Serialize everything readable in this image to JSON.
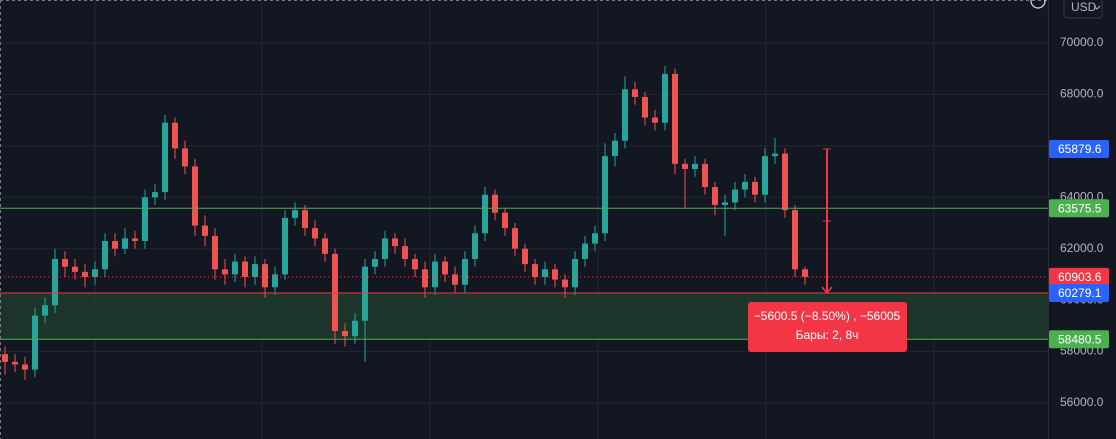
{
  "chart_data": {
    "type": "candlestick",
    "currency": "USD",
    "ylim": [
      54600,
      71672
    ],
    "yticks": [
      {
        "value": 56000,
        "label": "56000.0"
      },
      {
        "value": 58000,
        "label": "58000.0"
      },
      {
        "value": 60000,
        "label": "60000.0"
      },
      {
        "value": 62000,
        "label": "62000.0"
      },
      {
        "value": 64000,
        "label": "64000.0"
      },
      {
        "value": 66000,
        "label": "66000.0"
      },
      {
        "value": 68000,
        "label": "68000.0"
      },
      {
        "value": 70000,
        "label": "70000.0"
      }
    ],
    "grid": true,
    "up_color": "#26a69a",
    "down_color": "#ef5350",
    "open": [
      57900,
      57600,
      57500,
      57300,
      59400,
      59800,
      61600,
      61300,
      61100,
      60900,
      61200,
      62300,
      62000,
      62400,
      62300,
      64000,
      64200,
      66900,
      65900,
      65200,
      62900,
      62500,
      61200,
      61000,
      61500,
      60900,
      61400,
      60500,
      61000,
      63200,
      63500,
      62800,
      62400,
      61800,
      58800,
      58600,
      59200,
      61300,
      61600,
      62400,
      62100,
      61600,
      61200,
      60500,
      61500,
      61000,
      60600,
      61600,
      62600,
      64100,
      63400,
      62800,
      62000,
      61400,
      60900,
      61200,
      60800,
      60500,
      61600,
      62200,
      62600,
      65600,
      66200,
      68200,
      67900,
      67100,
      66900,
      68800,
      65300,
      65100,
      65300,
      64400,
      63700,
      63800,
      64300,
      64600,
      64100,
      65600,
      65700,
      63500,
      61200
    ],
    "high": [
      58200,
      57900,
      57800,
      59700,
      60100,
      62000,
      61900,
      61600,
      61400,
      61500,
      62600,
      62600,
      62800,
      62700,
      64300,
      64500,
      67200,
      67100,
      66200,
      65500,
      63300,
      62800,
      61600,
      61800,
      61700,
      61700,
      61600,
      61300,
      63500,
      63800,
      63700,
      63100,
      62600,
      62000,
      59100,
      59500,
      61600,
      61900,
      62700,
      62600,
      62400,
      61800,
      61500,
      61800,
      61700,
      61300,
      61900,
      62900,
      64400,
      64300,
      63600,
      63000,
      62200,
      61600,
      61500,
      61400,
      61000,
      61900,
      62500,
      62900,
      66100,
      66500,
      68700,
      68500,
      68100,
      67400,
      69100,
      69000,
      65500,
      65600,
      65500,
      64600,
      64100,
      64600,
      64900,
      64800,
      65900,
      66300,
      65900,
      63700,
      61300
    ],
    "low": [
      57100,
      57200,
      56900,
      57000,
      59100,
      59500,
      60900,
      60800,
      60500,
      60600,
      60900,
      61700,
      61800,
      62000,
      62000,
      63700,
      63900,
      65500,
      64900,
      62500,
      62100,
      60800,
      60600,
      60700,
      60500,
      60600,
      60100,
      60200,
      60800,
      62900,
      62500,
      62100,
      61500,
      58300,
      58200,
      58300,
      57600,
      61000,
      61300,
      61800,
      61300,
      60900,
      60100,
      60200,
      60700,
      60300,
      60300,
      61300,
      62300,
      63100,
      62500,
      61700,
      61100,
      60600,
      60600,
      60500,
      60100,
      60200,
      61300,
      61900,
      62300,
      65200,
      65900,
      67600,
      66800,
      66600,
      66600,
      64900,
      63600,
      64800,
      64100,
      63300,
      62500,
      63500,
      64000,
      63800,
      63800,
      65300,
      63200,
      60900,
      60600
    ],
    "close": [
      57600,
      57500,
      57300,
      59400,
      59800,
      61600,
      61300,
      61100,
      60900,
      61200,
      62300,
      62000,
      62400,
      62300,
      64000,
      64200,
      66900,
      65900,
      65200,
      62900,
      62500,
      61200,
      61000,
      61500,
      60900,
      61400,
      60500,
      61000,
      63200,
      63500,
      62800,
      62400,
      61800,
      58800,
      58600,
      59200,
      61300,
      61600,
      62400,
      62100,
      61600,
      61200,
      60500,
      61500,
      61000,
      60600,
      61600,
      62600,
      64100,
      63400,
      62800,
      62000,
      61400,
      60900,
      61200,
      60800,
      60500,
      61600,
      62200,
      62600,
      65600,
      66200,
      68200,
      67900,
      67100,
      66900,
      68800,
      65300,
      65100,
      65300,
      64400,
      63700,
      63800,
      64300,
      64600,
      64100,
      65600,
      65700,
      63500,
      61200,
      60903.6
    ],
    "zone": {
      "top": 60279.1,
      "bottom": 58480.5,
      "color": "#1e3a2c"
    },
    "levels": [
      {
        "value": 65879.6,
        "label_color": "#2962ff"
      },
      {
        "value": 63575.5,
        "label_color": "#4caf50",
        "line_color": "#4caf50",
        "line_style": "solid"
      },
      {
        "value": 60903.6,
        "label_color": "#f23645",
        "line_color": "#f23645",
        "line_style": "dotted"
      },
      {
        "value": 60279.1,
        "label_color": "#2962ff",
        "line_color": "#f23645",
        "line_style": "solid"
      },
      {
        "value": 58480.5,
        "label_color": "#4caf50",
        "line_color": "#4caf50",
        "line_style": "solid"
      }
    ],
    "measure": {
      "start": 65879.6,
      "end": 60279.1,
      "color": "#f23645",
      "texts": [
        "−5600.5 (−8.50%) , −56005",
        "Бары: 2, 8ч"
      ]
    }
  }
}
